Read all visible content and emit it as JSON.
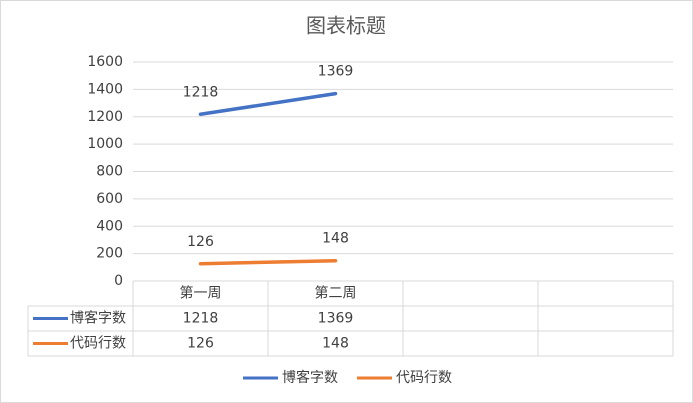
{
  "chart_data": {
    "type": "line",
    "title": "图表标题",
    "categories": [
      "第一周",
      "第二周",
      null,
      null
    ],
    "series": [
      {
        "name": "博客字数",
        "color": "#4472c4",
        "values": [
          1218,
          1369,
          null,
          null
        ]
      },
      {
        "name": "代码行数",
        "color": "#ed7d31",
        "values": [
          126,
          148,
          null,
          null
        ]
      }
    ],
    "ylim": [
      0,
      1600
    ],
    "yticks": [
      0,
      200,
      400,
      600,
      800,
      1000,
      1200,
      1400,
      1600
    ],
    "grid": true
  }
}
